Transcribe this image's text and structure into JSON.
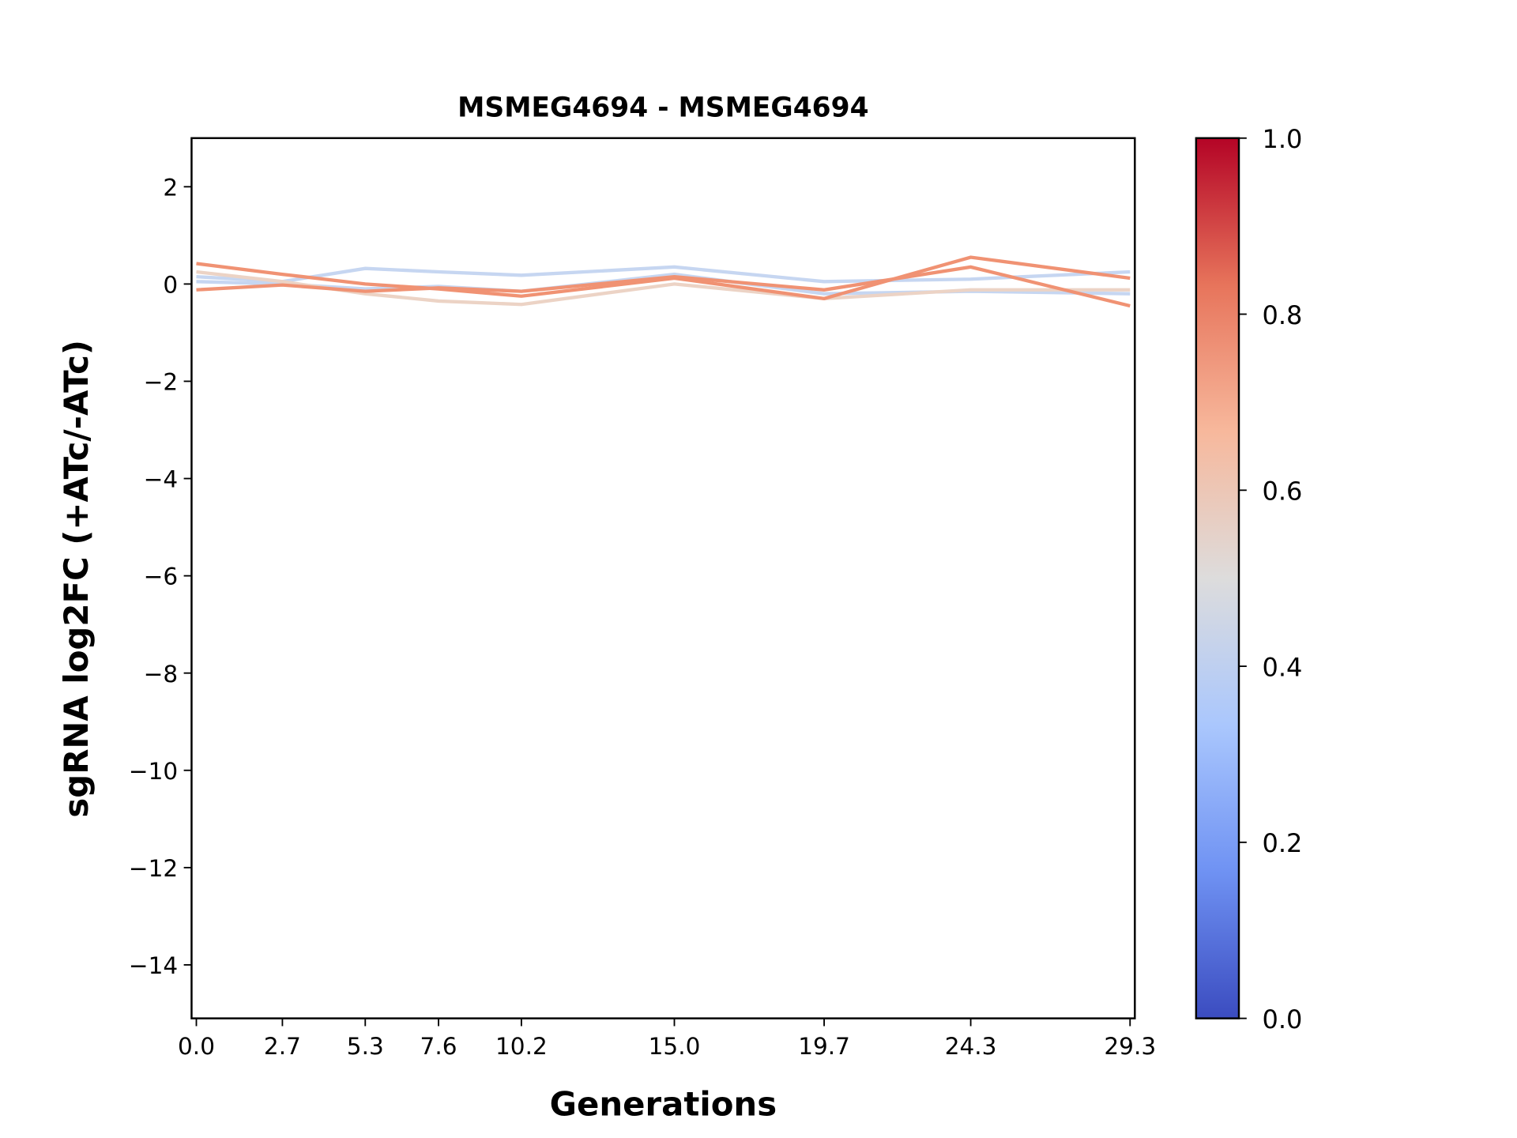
{
  "chart_data": {
    "type": "line",
    "title": "MSMEG4694 - MSMEG4694",
    "xlabel": "Generations",
    "ylabel": "sgRNA log2FC (+ATc/-ATc)",
    "x": [
      0.0,
      2.7,
      5.3,
      7.6,
      10.2,
      15.0,
      19.7,
      24.3,
      29.3
    ],
    "xtick_labels": [
      "0.0",
      "2.7",
      "5.3",
      "7.6",
      "10.2",
      "15.0",
      "19.7",
      "24.3",
      "29.3"
    ],
    "yticks": [
      2,
      0,
      -2,
      -4,
      -6,
      -8,
      -10,
      -12,
      -14
    ],
    "ytick_labels": [
      "2",
      "0",
      "−2",
      "−4",
      "−6",
      "−8",
      "−10",
      "−12",
      "−14"
    ],
    "xlim": [
      -0.15,
      29.45
    ],
    "ylim": [
      -15.1,
      3
    ],
    "grid": false,
    "series": [
      {
        "color": "#c6d6f1",
        "values": [
          0.15,
          0.05,
          0.32,
          0.25,
          0.18,
          0.35,
          0.05,
          0.1,
          0.25
        ]
      },
      {
        "color": "#c6d6f1",
        "values": [
          0.05,
          0.0,
          -0.1,
          -0.05,
          -0.15,
          0.2,
          -0.2,
          -0.15,
          -0.2
        ]
      },
      {
        "color": "#ecd3c5",
        "values": [
          0.25,
          0.05,
          -0.2,
          -0.35,
          -0.42,
          0.0,
          -0.3,
          -0.12,
          -0.12
        ]
      },
      {
        "color": "#f09273",
        "values": [
          0.42,
          0.2,
          0.0,
          -0.1,
          -0.25,
          0.12,
          -0.3,
          0.55,
          0.12
        ]
      },
      {
        "color": "#f09273",
        "values": [
          -0.12,
          -0.02,
          -0.15,
          -0.08,
          -0.15,
          0.15,
          -0.12,
          0.35,
          -0.45
        ]
      }
    ],
    "colorbar": {
      "colormap": "coolwarm",
      "range": [
        0.0,
        1.0
      ],
      "ticks": [
        "0.0",
        "0.2",
        "0.4",
        "0.6",
        "0.8",
        "1.0"
      ],
      "colors": [
        "#3b4cc0",
        "#6f92f3",
        "#aac7fd",
        "#dddcdc",
        "#f7b89c",
        "#e7745b",
        "#b40426"
      ]
    }
  }
}
